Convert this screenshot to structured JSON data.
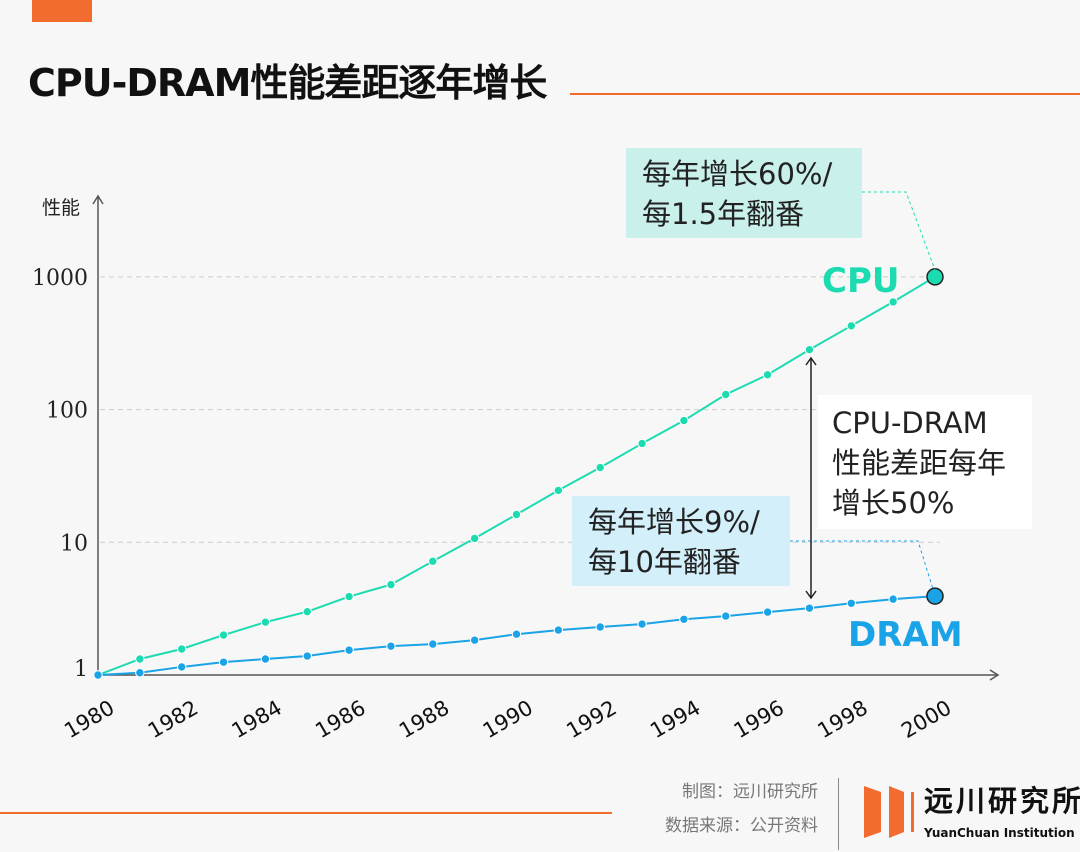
{
  "header": {
    "title": "CPU-DRAM性能差距逐年增长"
  },
  "footer": {
    "made_by": "制图：远川研究所",
    "source": "数据来源：公开资料",
    "logo_cn": "远川研究所",
    "logo_en": "YuanChuan Institution"
  },
  "colors": {
    "cpu": "#1ddbb0",
    "dram": "#1aa3e6",
    "accent": "#f26b2f"
  },
  "chart_data": {
    "type": "line",
    "ylabel": "性能",
    "xlabel": "",
    "yscale": "log",
    "ylim": [
      1,
      1000
    ],
    "yticks": [
      "1",
      "10",
      "100",
      "1000"
    ],
    "xlim": [
      1980,
      2000
    ],
    "xticks": [
      "1980",
      "1982",
      "1984",
      "1986",
      "1988",
      "1990",
      "1992",
      "1994",
      "1996",
      "1998",
      "2000"
    ],
    "grid": "horizontal dashed",
    "x": [
      1980,
      1981,
      1982,
      1983,
      1984,
      1985,
      1986,
      1987,
      1988,
      1989,
      1990,
      1991,
      1992,
      1993,
      1994,
      1995,
      1996,
      1997,
      1998,
      1999,
      2000
    ],
    "series": [
      {
        "name": "CPU",
        "values": [
          1,
          1.32,
          1.57,
          2.0,
          2.5,
          3.0,
          3.9,
          4.8,
          7.2,
          10.7,
          16.2,
          24.6,
          36.6,
          55.5,
          82.7,
          130,
          183,
          283,
          428,
          648,
          1000
        ]
      },
      {
        "name": "DRAM",
        "values": [
          1,
          1.04,
          1.15,
          1.25,
          1.32,
          1.39,
          1.54,
          1.65,
          1.71,
          1.83,
          2.03,
          2.18,
          2.3,
          2.42,
          2.63,
          2.78,
          2.98,
          3.19,
          3.47,
          3.73,
          3.93
        ]
      }
    ],
    "annotations": {
      "cpu_rate": [
        "每年增长60%/",
        "每1.5年翻番"
      ],
      "dram_rate": [
        "每年增长9%/",
        "每10年翻番"
      ],
      "gap": [
        "CPU-DRAM",
        "性能差距每年",
        "增长50%"
      ]
    }
  }
}
